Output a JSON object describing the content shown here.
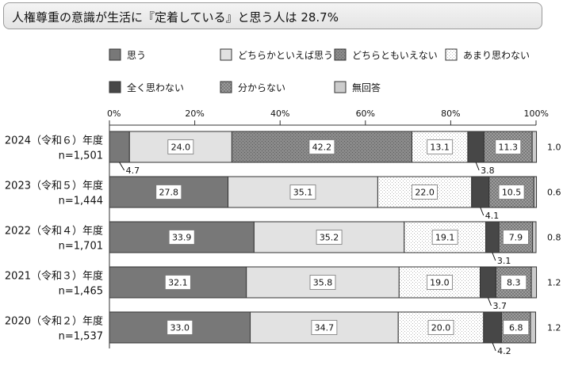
{
  "title": "人権尊重の意識が生活に『定着している』と思う人は 28.7%",
  "chart_data": {
    "type": "bar",
    "orientation": "horizontal",
    "stacked": "100%",
    "x_ticks": [
      "0%",
      "20%",
      "40%",
      "60%",
      "80%",
      "100%"
    ],
    "xlim": [
      0,
      100
    ],
    "legend": [
      {
        "name": "思う",
        "fill": "#787878",
        "pattern": "solid"
      },
      {
        "name": "どちらかといえば思う",
        "fill": "#e2e2e2",
        "pattern": "solid"
      },
      {
        "name": "どちらともいえない",
        "fill": "#8a8a8a",
        "pattern": "dots"
      },
      {
        "name": "あまり思わない",
        "fill": "#ffffff",
        "pattern": "dots"
      },
      {
        "name": "全く思わない",
        "fill": "#474747",
        "pattern": "solid"
      },
      {
        "name": "分からない",
        "fill": "#9c9c9c",
        "pattern": "checker"
      },
      {
        "name": "無回答",
        "fill": "#cccccc",
        "pattern": "solid"
      }
    ],
    "categories": [
      {
        "line1": "2024（令和６）年度",
        "line2": "n=1,501"
      },
      {
        "line1": "2023（令和５）年度",
        "line2": "n=1,444"
      },
      {
        "line1": "2022（令和４）年度",
        "line2": "n=1,701"
      },
      {
        "line1": "2021（令和３）年度",
        "line2": "n=1,465"
      },
      {
        "line1": "2020（令和２）年度",
        "line2": "n=1,537"
      }
    ],
    "series_values": [
      [
        4.7,
        24.0,
        42.2,
        13.1,
        3.8,
        11.3,
        1.0
      ],
      [
        27.8,
        35.1,
        22.0,
        4.1,
        10.5,
        0.6
      ],
      [
        33.9,
        35.2,
        19.1,
        3.1,
        7.9,
        0.8
      ],
      [
        32.1,
        35.8,
        19.0,
        3.7,
        8.3,
        1.2
      ],
      [
        33.0,
        34.7,
        20.0,
        4.2,
        6.8,
        1.2
      ]
    ],
    "series_map": [
      [
        0,
        1,
        2,
        3,
        4,
        5,
        6
      ],
      [
        0,
        1,
        3,
        4,
        5,
        6
      ],
      [
        0,
        1,
        3,
        4,
        5,
        6
      ],
      [
        0,
        1,
        3,
        4,
        5,
        6
      ],
      [
        0,
        1,
        3,
        4,
        5,
        6
      ]
    ]
  }
}
